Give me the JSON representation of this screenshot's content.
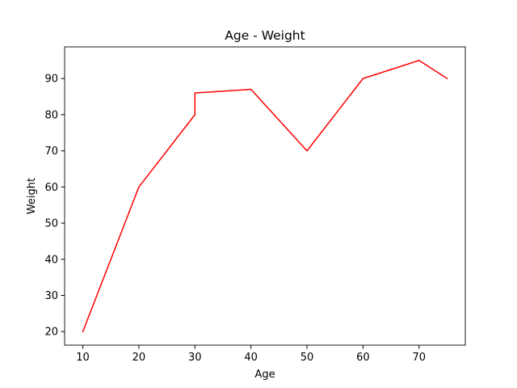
{
  "chart_data": {
    "type": "line",
    "title": "Age - Weight",
    "xlabel": "Age",
    "ylabel": "Weight",
    "x": [
      10,
      20,
      30,
      30,
      40,
      50,
      60,
      70,
      75
    ],
    "series": [
      {
        "values": [
          20,
          60,
          80,
          86,
          87,
          70,
          90,
          95,
          90
        ],
        "color": "#ff0000"
      }
    ],
    "xlim": [
      6.75,
      78.25
    ],
    "ylim": [
      16.25,
      98.75
    ],
    "xticks": [
      10,
      20,
      30,
      40,
      50,
      60,
      70
    ],
    "yticks": [
      20,
      30,
      40,
      50,
      60,
      70,
      80,
      90
    ],
    "grid": false,
    "legend": "none"
  }
}
